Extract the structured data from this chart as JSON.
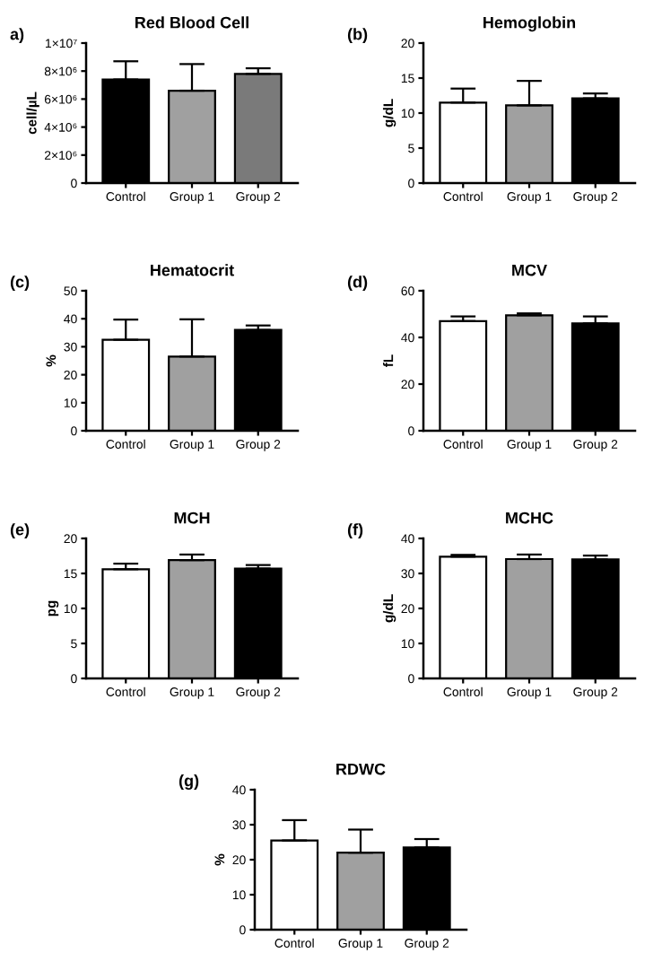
{
  "chart_data": [
    {
      "type": "bar",
      "title": "Red Blood Cell",
      "ylabel": "cell/µL",
      "annotations": [
        "a)"
      ],
      "categories": [
        "Control",
        "Group 1",
        "Group 2"
      ],
      "values": [
        7400000,
        6600000,
        7800000
      ],
      "errors": [
        [
          7400000,
          8700000
        ],
        [
          6600000,
          8500000
        ],
        [
          7800000,
          8200000
        ]
      ],
      "colors": [
        "#000000",
        "#a0a0a0",
        "#7a7a7a"
      ],
      "ylim": [
        0,
        10000000
      ],
      "yticks": [
        0,
        {
          "value": 2000000,
          "label": "2×10⁶"
        },
        {
          "value": 4000000,
          "label": "4×10⁶"
        },
        {
          "value": 6000000,
          "label": "6×10⁶"
        },
        {
          "value": 8000000,
          "label": "8×10⁶"
        },
        {
          "value": 10000000,
          "label": "1×10⁷"
        }
      ]
    },
    {
      "type": "bar",
      "title": "Hemoglobin",
      "ylabel": "g/dL",
      "annotations": [
        "(b)"
      ],
      "categories": [
        "Control",
        "Group 1",
        "Group 2"
      ],
      "values": [
        11.5,
        11.1,
        12.1
      ],
      "errors": [
        [
          11.5,
          13.5
        ],
        [
          11.1,
          14.6
        ],
        [
          12.1,
          12.8
        ]
      ],
      "colors": [
        "#ffffff",
        "#a0a0a0",
        "#000000"
      ],
      "ylim": [
        0,
        20
      ],
      "yticks": [
        0,
        5,
        10,
        15,
        20
      ]
    },
    {
      "type": "bar",
      "title": "Hematocrit",
      "ylabel": "%",
      "annotations": [
        "(c)"
      ],
      "categories": [
        "Control",
        "Group 1",
        "Group 2"
      ],
      "values": [
        32.5,
        26.5,
        36
      ],
      "errors": [
        [
          32.5,
          39.7
        ],
        [
          26.5,
          39.8
        ],
        [
          36,
          37.6
        ]
      ],
      "colors": [
        "#ffffff",
        "#a0a0a0",
        "#000000"
      ],
      "ylim": [
        0,
        50
      ],
      "yticks": [
        0,
        10,
        20,
        30,
        40,
        50
      ]
    },
    {
      "type": "bar",
      "title": "MCV",
      "ylabel": "fL",
      "annotations": [
        "(d)"
      ],
      "categories": [
        "Control",
        "Group 1",
        "Group 2"
      ],
      "values": [
        47,
        49.5,
        46
      ],
      "errors": [
        [
          47,
          49
        ],
        [
          49.5,
          50.3
        ],
        [
          46,
          49
        ]
      ],
      "colors": [
        "#ffffff",
        "#a0a0a0",
        "#000000"
      ],
      "ylim": [
        0,
        60
      ],
      "yticks": [
        0,
        20,
        40,
        60
      ]
    },
    {
      "type": "bar",
      "title": "MCH",
      "ylabel": "pg",
      "annotations": [
        "(e)"
      ],
      "categories": [
        "Control",
        "Group 1",
        "Group 2"
      ],
      "values": [
        15.6,
        16.9,
        15.7
      ],
      "errors": [
        [
          15.6,
          16.4
        ],
        [
          16.9,
          17.7
        ],
        [
          15.7,
          16.2
        ]
      ],
      "colors": [
        "#ffffff",
        "#a0a0a0",
        "#000000"
      ],
      "ylim": [
        0,
        20
      ],
      "yticks": [
        0,
        5,
        10,
        15,
        20
      ]
    },
    {
      "type": "bar",
      "title": "MCHC",
      "ylabel": "g/dL",
      "annotations": [
        "(f)"
      ],
      "categories": [
        "Control",
        "Group 1",
        "Group 2"
      ],
      "values": [
        34.8,
        34.1,
        34
      ],
      "errors": [
        [
          34.8,
          35.3
        ],
        [
          34.1,
          35.4
        ],
        [
          34,
          35.1
        ]
      ],
      "colors": [
        "#ffffff",
        "#a0a0a0",
        "#000000"
      ],
      "ylim": [
        0,
        40
      ],
      "yticks": [
        0,
        10,
        20,
        30,
        40
      ]
    },
    {
      "type": "bar",
      "title": "RDWC",
      "ylabel": "%",
      "annotations": [
        "(g)"
      ],
      "categories": [
        "Control",
        "Group 1",
        "Group 2"
      ],
      "values": [
        25.5,
        22,
        23.5
      ],
      "errors": [
        [
          25.5,
          31.3
        ],
        [
          22,
          28.6
        ],
        [
          23.5,
          25.9
        ]
      ],
      "colors": [
        "#ffffff",
        "#a0a0a0",
        "#000000"
      ],
      "ylim": [
        0,
        40
      ],
      "yticks": [
        0,
        10,
        20,
        30,
        40
      ]
    }
  ]
}
